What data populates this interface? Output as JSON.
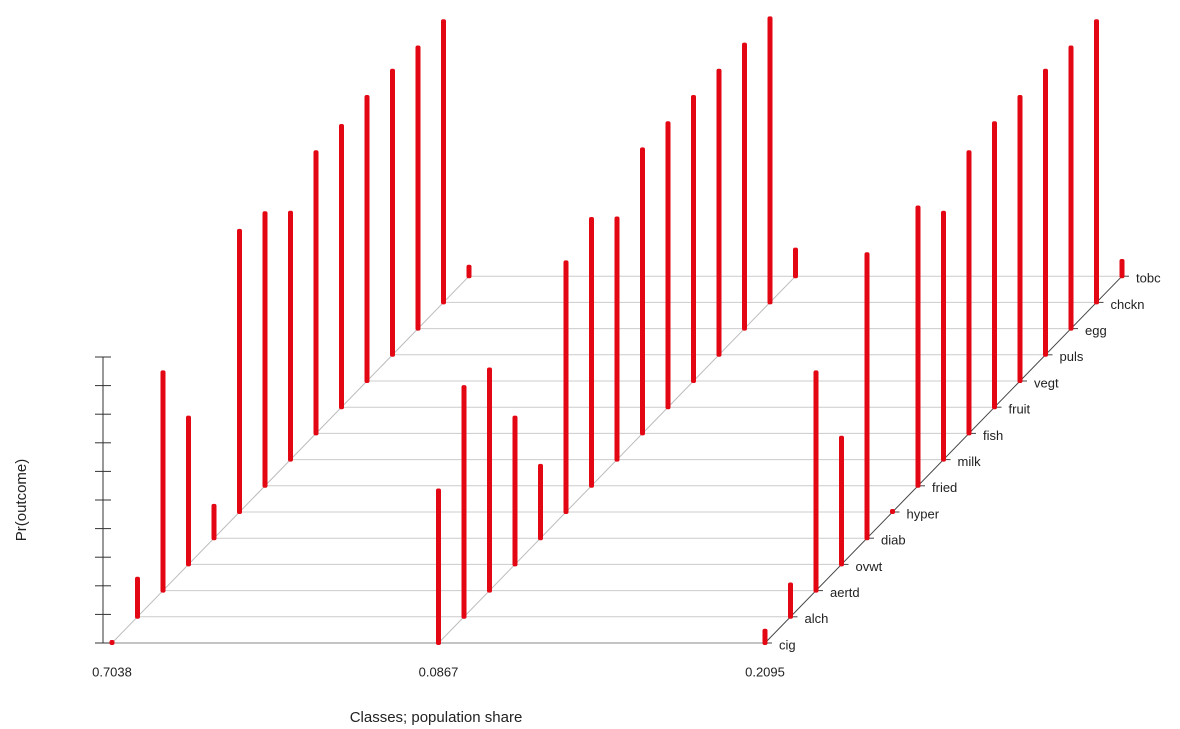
{
  "chart_data": {
    "type": "bar3d",
    "x_label": "Classes; population share",
    "y_label": "Pr(outcome)",
    "categories": [
      "0.7038",
      "0.0867",
      "0.2095"
    ],
    "items": [
      "cig",
      "alch",
      "aertd",
      "ovwt",
      "diab",
      "hyper",
      "fried",
      "milk",
      "fish",
      "fruit",
      "vegt",
      "puls",
      "egg",
      "chckn",
      "tobc"
    ],
    "values": [
      [
        0.01,
        0.14,
        0.77,
        0.52,
        0.12,
        0.99,
        0.96,
        0.87,
        0.99,
        0.99,
        1.0,
        1.0,
        0.99,
        0.99,
        0.04
      ],
      [
        0.54,
        0.81,
        0.78,
        0.52,
        0.26,
        0.88,
        0.94,
        0.85,
        1.0,
        1.0,
        1.0,
        1.0,
        1.0,
        1.0,
        0.1
      ],
      [
        0.05,
        0.12,
        0.77,
        0.45,
        1.0,
        0.01,
        0.98,
        0.87,
        0.99,
        1.0,
        1.0,
        1.0,
        0.99,
        0.99,
        0.06
      ]
    ],
    "color": "#e30613",
    "ylim": [
      0,
      1
    ],
    "yticks": [
      0,
      0.1,
      0.2,
      0.3,
      0.4,
      0.5,
      0.6,
      0.7,
      0.8,
      0.9,
      1
    ]
  }
}
